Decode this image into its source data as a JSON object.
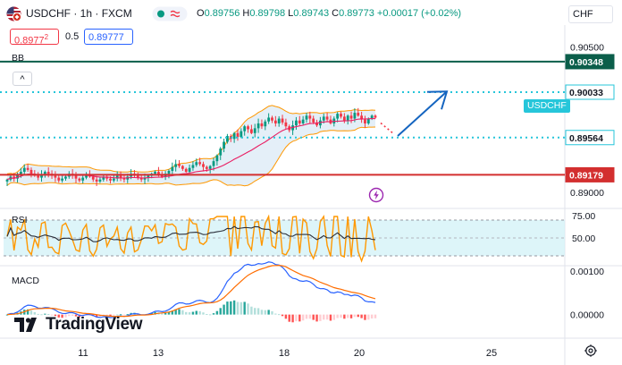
{
  "header": {
    "symbol": "USDCHF",
    "interval": "1h",
    "exchange": "FXCM",
    "title_sep": " · ",
    "ohlc": {
      "o_label": "O",
      "o_value": "0.89756",
      "h_label": "H",
      "h_value": "0.89798",
      "l_label": "L",
      "l_value": "0.89743",
      "c_label": "C",
      "c_value": "0.89773",
      "change": "+0.00017 (+0.02%)"
    },
    "sell_price": "0.8977",
    "sell_price_sup": "2",
    "spread": "0.5",
    "buy_price": "0.89777",
    "currency": "CHF",
    "collapse_glyph": "^"
  },
  "colors": {
    "up": "#089981",
    "down": "#f23645",
    "bb_basis": "#e91e63",
    "bb_band": "#ff9800",
    "bb_fill": "#dbeaf6",
    "green_line": "#0b5e4a",
    "red_line": "#d32f2f",
    "dotted": "#26c6da",
    "arrow": "#1565c0",
    "rsi_line": "#ff9800",
    "rsi_ma": "#2a2e39",
    "rsi_band": "#d4f3f7",
    "macd_line": "#2962ff",
    "signal_line": "#ff6d00"
  },
  "icons": {
    "symbol_flag": "usd-chf-flag-icon",
    "status": "market-status-icon",
    "lightning": "lightning-icon",
    "settings": "settings-gear-icon",
    "logo": "tradingview-logo-icon"
  },
  "logo_text": "TradingView",
  "symbol_tag": "USDCHF",
  "chart_data": [
    {
      "type": "candlestick",
      "pane": "price",
      "symbol": "USDCHF",
      "indicator_label": "BB",
      "x_tick_labels": [
        "11",
        "13",
        "18",
        "20",
        "25"
      ],
      "y_tick_labels": [
        "0.90500",
        "0.90000",
        "0.89000"
      ],
      "y_ticks": [
        0.905,
        0.9,
        0.89
      ],
      "ylim": [
        0.8885,
        0.9056
      ],
      "levels": [
        {
          "name": "resistance",
          "value": 0.90348,
          "label": "0.90348",
          "style": "solid"
        },
        {
          "name": "target",
          "value": 0.90033,
          "label": "0.90033",
          "style": "dotted"
        },
        {
          "name": "pivot",
          "value": 0.89564,
          "label": "0.89564",
          "style": "dotted"
        },
        {
          "name": "support",
          "value": 0.89179,
          "label": "0.89179",
          "style": "solid"
        }
      ],
      "last_close": 0.89773,
      "close_series": [
        0.8913,
        0.8916,
        0.8914,
        0.8918,
        0.8921,
        0.8925,
        0.8923,
        0.8919,
        0.8917,
        0.8915,
        0.8918,
        0.8921,
        0.8919,
        0.8917,
        0.8915,
        0.8912,
        0.8914,
        0.8916,
        0.8919,
        0.8917,
        0.8914,
        0.8912,
        0.8915,
        0.8918,
        0.8916,
        0.8913,
        0.8911,
        0.8913,
        0.8916,
        0.8914,
        0.8912,
        0.8914,
        0.8917,
        0.8915,
        0.8913,
        0.8916,
        0.8919,
        0.8917,
        0.8915,
        0.8913,
        0.8915,
        0.8917,
        0.8919,
        0.8921,
        0.8918,
        0.8916,
        0.8919,
        0.8922,
        0.8926,
        0.8929,
        0.8927,
        0.8924,
        0.8921,
        0.8925,
        0.8928,
        0.8931,
        0.8929,
        0.8926,
        0.8924,
        0.8927,
        0.8932,
        0.8938,
        0.8945,
        0.8952,
        0.8958,
        0.8955,
        0.8961,
        0.8957,
        0.8963,
        0.8968,
        0.8965,
        0.8961,
        0.8966,
        0.8971,
        0.8968,
        0.8973,
        0.8977,
        0.8974,
        0.8971,
        0.8976,
        0.8972,
        0.8968,
        0.8964,
        0.8969,
        0.8974,
        0.8971,
        0.8975,
        0.8979,
        0.8976,
        0.8972,
        0.8969,
        0.8974,
        0.8978,
        0.8975,
        0.8971,
        0.8976,
        0.8981,
        0.8978,
        0.8974,
        0.8979,
        0.8976,
        0.8982,
        0.8979,
        0.8975,
        0.8971,
        0.8976,
        0.8979,
        0.8977
      ],
      "projection": {
        "from": 0.8958,
        "to": 0.9004
      }
    },
    {
      "type": "line",
      "pane": "rsi",
      "indicator_label": "RSI",
      "y_tick_labels": [
        "75.00",
        "50.00"
      ],
      "ylim": [
        20,
        80
      ],
      "band": [
        30,
        70
      ],
      "y_ticks": [
        75,
        50
      ]
    },
    {
      "type": "line",
      "pane": "macd",
      "indicator_label": "MACD",
      "y_tick_labels": [
        "0.00100",
        "0.00000"
      ],
      "y_ticks": [
        0.001,
        0.0
      ],
      "ylim": [
        -0.0005,
        0.0011
      ]
    }
  ]
}
